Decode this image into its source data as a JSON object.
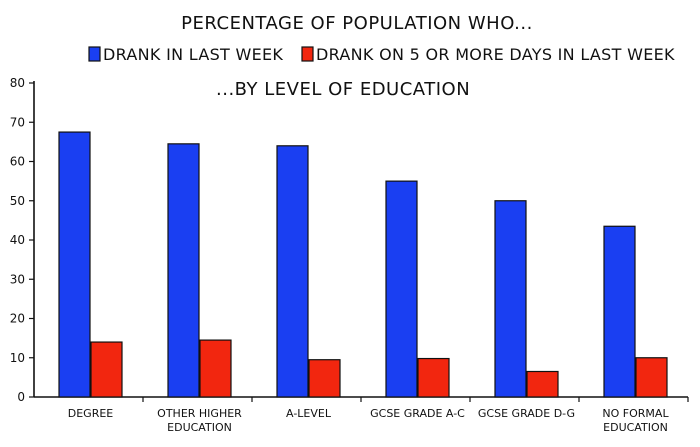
{
  "chart_data": {
    "type": "bar",
    "title": "PERCENTAGE OF POPULATION WHO...",
    "subtitle": "...BY LEVEL OF EDUCATION",
    "xlabel": "",
    "ylabel": "",
    "ylim": [
      0,
      80
    ],
    "yticks": [
      "0",
      "10",
      "20",
      "30",
      "40",
      "50",
      "60",
      "70",
      "80"
    ],
    "grid": false,
    "legend_position": "top",
    "categories": [
      [
        "DEGREE"
      ],
      [
        "OTHER HIGHER",
        "EDUCATION"
      ],
      [
        "A-LEVEL"
      ],
      [
        "GCSE GRADE A-C"
      ],
      [
        "GCSE GRADE D-G"
      ],
      [
        "NO FORMAL",
        "EDUCATION"
      ]
    ],
    "series": [
      {
        "name": "DRANK IN LAST WEEK",
        "color": "#1a3ff2",
        "values": [
          67.5,
          64.5,
          64,
          55,
          50,
          43.5
        ]
      },
      {
        "name": "DRANK ON 5 OR MORE DAYS IN LAST WEEK",
        "color": "#f2260f",
        "values": [
          14,
          14.5,
          9.5,
          9.8,
          6.5,
          10
        ]
      }
    ]
  }
}
